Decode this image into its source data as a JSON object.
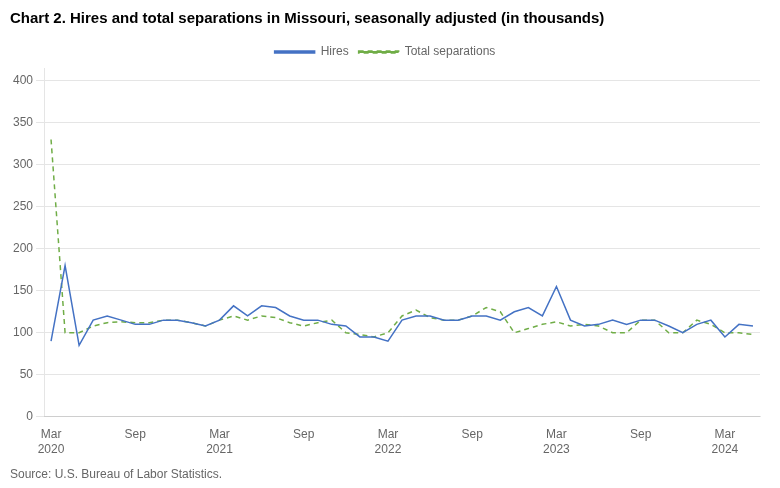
{
  "chart_data": {
    "type": "line",
    "title": "Chart 2. Hires and total separations in Missouri, seasonally adjusted (in thousands)",
    "source": "Source: U.S. Bureau of Labor Statistics.",
    "categories": [
      "Mar 2020",
      null,
      null,
      null,
      null,
      null,
      "Sep",
      null,
      null,
      null,
      null,
      null,
      "Mar 2021",
      null,
      null,
      null,
      null,
      null,
      "Sep",
      null,
      null,
      null,
      null,
      null,
      "Mar 2022",
      null,
      null,
      null,
      null,
      null,
      "Sep",
      null,
      null,
      null,
      null,
      null,
      "Mar 2023",
      null,
      null,
      null,
      null,
      null,
      "Sep",
      null,
      null,
      null,
      null,
      null,
      "Mar 2024",
      null,
      null
    ],
    "series": [
      {
        "name": "Hires",
        "color": "#4472C4",
        "line_style": "solid",
        "values": [
          90,
          180,
          85,
          115,
          120,
          115,
          110,
          110,
          115,
          115,
          112,
          108,
          115,
          132,
          120,
          132,
          130,
          120,
          115,
          115,
          110,
          108,
          95,
          95,
          90,
          115,
          120,
          120,
          115,
          115,
          120,
          120,
          115,
          125,
          130,
          120,
          155,
          115,
          108,
          110,
          115,
          110,
          115,
          115,
          108,
          100,
          110,
          115,
          95,
          110,
          108
        ]
      },
      {
        "name": "Total separations",
        "color": "#70AD47",
        "line_style": "dashed",
        "values": [
          330,
          100,
          100,
          108,
          112,
          113,
          112,
          112,
          115,
          115,
          112,
          108,
          115,
          120,
          115,
          120,
          118,
          112,
          108,
          112,
          115,
          100,
          98,
          95,
          100,
          120,
          127,
          118,
          115,
          115,
          120,
          130,
          125,
          100,
          105,
          110,
          113,
          108,
          110,
          108,
          100,
          100,
          115,
          115,
          100,
          100,
          115,
          110,
          100,
          100,
          98
        ]
      }
    ],
    "ylim": [
      0,
      415
    ],
    "yticks": [
      0,
      50,
      100,
      150,
      200,
      250,
      300,
      350,
      400
    ],
    "grid": true,
    "legend": "top"
  }
}
